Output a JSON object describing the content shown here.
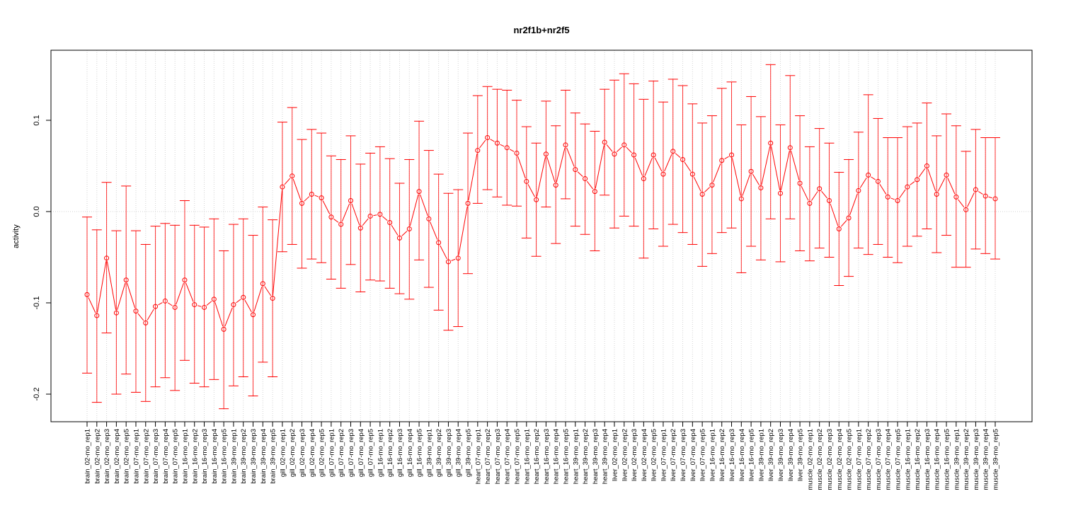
{
  "chart_data": {
    "type": "line",
    "title": "nr2f1b+nr2f5",
    "xlabel": "",
    "ylabel": "activity",
    "ylim": [
      -0.23,
      0.175
    ],
    "yticks": [
      -0.2,
      -0.1,
      0.0,
      0.1
    ],
    "ytick_labels": [
      "-0.2",
      "-0.1",
      "0.0",
      "0.1"
    ],
    "grid": "dotted vertical at each sample, horizontal at 0",
    "color": "#ff0000",
    "categories": [
      "brain_02-mo_rep1",
      "brain_02-mo_rep2",
      "brain_02-mo_rep3",
      "brain_02-mo_rep4",
      "brain_02-mo_rep5",
      "brain_07-mo_rep1",
      "brain_07-mo_rep2",
      "brain_07-mo_rep3",
      "brain_07-mo_rep4",
      "brain_07-mo_rep5",
      "brain_16-mo_rep1",
      "brain_16-mo_rep2",
      "brain_16-mo_rep3",
      "brain_16-mo_rep4",
      "brain_16-mo_rep5",
      "brain_39-mo_rep1",
      "brain_39-mo_rep2",
      "brain_39-mo_rep3",
      "brain_39-mo_rep4",
      "brain_39-mo_rep5",
      "gill_02-mo_rep1",
      "gill_02-mo_rep2",
      "gill_02-mo_rep3",
      "gill_02-mo_rep4",
      "gill_02-mo_rep5",
      "gill_07-mo_rep1",
      "gill_07-mo_rep2",
      "gill_07-mo_rep3",
      "gill_07-mo_rep4",
      "gill_07-mo_rep5",
      "gill_16-mo_rep1",
      "gill_16-mo_rep2",
      "gill_16-mo_rep3",
      "gill_16-mo_rep4",
      "gill_16-mo_rep5",
      "gill_39-mo_rep1",
      "gill_39-mo_rep2",
      "gill_39-mo_rep3",
      "gill_39-mo_rep4",
      "gill_39-mo_rep5",
      "heart_07-mo_rep1",
      "heart_07-mo_rep2",
      "heart_07-mo_rep3",
      "heart_07-mo_rep4",
      "heart_07-mo_rep5",
      "heart_16-mo_rep1",
      "heart_16-mo_rep2",
      "heart_16-mo_rep3",
      "heart_16-mo_rep4",
      "heart_16-mo_rep5",
      "heart_39-mo_rep1",
      "heart_39-mo_rep2",
      "heart_39-mo_rep3",
      "heart_39-mo_rep4",
      "liver_02-mo_rep1",
      "liver_02-mo_rep2",
      "liver_02-mo_rep3",
      "liver_02-mo_rep4",
      "liver_02-mo_rep5",
      "liver_07-mo_rep1",
      "liver_07-mo_rep2",
      "liver_07-mo_rep3",
      "liver_07-mo_rep4",
      "liver_07-mo_rep5",
      "liver_16-mo_rep1",
      "liver_16-mo_rep2",
      "liver_16-mo_rep3",
      "liver_16-mo_rep4",
      "liver_16-mo_rep5",
      "liver_39-mo_rep1",
      "liver_39-mo_rep2",
      "liver_39-mo_rep3",
      "liver_39-mo_rep4",
      "liver_39-mo_rep5",
      "muscle_02-mo_rep1",
      "muscle_02-mo_rep2",
      "muscle_02-mo_rep3",
      "muscle_02-mo_rep4",
      "muscle_02-mo_rep5",
      "muscle_07-mo_rep1",
      "muscle_07-mo_rep2",
      "muscle_07-mo_rep3",
      "muscle_07-mo_rep4",
      "muscle_07-mo_rep5",
      "muscle_16-mo_rep1",
      "muscle_16-mo_rep2",
      "muscle_16-mo_rep3",
      "muscle_16-mo_rep4",
      "muscle_16-mo_rep5",
      "muscle_39-mo_rep1",
      "muscle_39-mo_rep2",
      "muscle_39-mo_rep3",
      "muscle_39-mo_rep4",
      "muscle_39-mo_rep5"
    ],
    "values": [
      -0.091,
      -0.114,
      -0.051,
      -0.111,
      -0.075,
      -0.109,
      -0.122,
      -0.104,
      -0.098,
      -0.105,
      -0.075,
      -0.102,
      -0.105,
      -0.096,
      -0.129,
      -0.102,
      -0.094,
      -0.113,
      -0.079,
      -0.095,
      0.027,
      0.039,
      0.009,
      0.019,
      0.015,
      -0.006,
      -0.014,
      0.012,
      -0.018,
      -0.005,
      -0.003,
      -0.012,
      -0.029,
      -0.019,
      0.022,
      -0.008,
      -0.034,
      -0.055,
      -0.051,
      0.009,
      0.067,
      0.081,
      0.075,
      0.07,
      0.064,
      0.033,
      0.013,
      0.063,
      0.029,
      0.073,
      0.046,
      0.036,
      0.022,
      0.076,
      0.063,
      0.073,
      0.062,
      0.036,
      0.062,
      0.041,
      0.066,
      0.057,
      0.041,
      0.019,
      0.029,
      0.056,
      0.062,
      0.014,
      0.044,
      0.026,
      0.075,
      0.02,
      0.07,
      0.031,
      0.009,
      0.025,
      0.012,
      -0.019,
      -0.007,
      0.023,
      0.04,
      0.033,
      0.016,
      0.012,
      0.027,
      0.035,
      0.05,
      0.019,
      0.04,
      0.016,
      0.002,
      0.024,
      0.017,
      0.014
    ],
    "upper": [
      -0.006,
      -0.02,
      0.032,
      -0.021,
      0.028,
      -0.021,
      -0.036,
      -0.016,
      -0.013,
      -0.015,
      0.012,
      -0.015,
      -0.017,
      -0.008,
      -0.043,
      -0.014,
      -0.008,
      -0.026,
      0.005,
      -0.009,
      0.098,
      0.114,
      0.079,
      0.09,
      0.086,
      0.061,
      0.057,
      0.083,
      0.052,
      0.064,
      0.071,
      0.058,
      0.031,
      0.057,
      0.099,
      0.067,
      0.041,
      0.02,
      0.024,
      0.086,
      0.127,
      0.137,
      0.134,
      0.133,
      0.122,
      0.093,
      0.075,
      0.121,
      0.094,
      0.133,
      0.108,
      0.096,
      0.088,
      0.134,
      0.144,
      0.151,
      0.14,
      0.123,
      0.143,
      0.12,
      0.145,
      0.138,
      0.118,
      0.097,
      0.105,
      0.135,
      0.142,
      0.095,
      0.126,
      0.104,
      0.161,
      0.095,
      0.149,
      0.105,
      0.071,
      0.091,
      0.075,
      0.043,
      0.057,
      0.087,
      0.128,
      0.102,
      0.081,
      0.081,
      0.093,
      0.097,
      0.119,
      0.083,
      0.107,
      0.094,
      0.066,
      0.09,
      0.081,
      0.081
    ],
    "lower": [
      -0.177,
      -0.209,
      -0.133,
      -0.2,
      -0.178,
      -0.198,
      -0.208,
      -0.192,
      -0.182,
      -0.196,
      -0.163,
      -0.188,
      -0.192,
      -0.184,
      -0.216,
      -0.191,
      -0.181,
      -0.202,
      -0.165,
      -0.181,
      -0.044,
      -0.036,
      -0.062,
      -0.052,
      -0.056,
      -0.074,
      -0.084,
      -0.058,
      -0.088,
      -0.075,
      -0.076,
      -0.084,
      -0.09,
      -0.096,
      -0.053,
      -0.083,
      -0.108,
      -0.13,
      -0.126,
      -0.068,
      0.009,
      0.024,
      0.016,
      0.007,
      0.006,
      -0.029,
      -0.049,
      0.005,
      -0.035,
      0.014,
      -0.016,
      -0.025,
      -0.043,
      0.018,
      -0.018,
      -0.005,
      -0.016,
      -0.051,
      -0.019,
      -0.038,
      -0.014,
      -0.023,
      -0.036,
      -0.06,
      -0.046,
      -0.023,
      -0.018,
      -0.067,
      -0.038,
      -0.053,
      -0.008,
      -0.055,
      -0.008,
      -0.043,
      -0.054,
      -0.04,
      -0.05,
      -0.081,
      -0.071,
      -0.04,
      -0.047,
      -0.036,
      -0.05,
      -0.056,
      -0.038,
      -0.027,
      -0.019,
      -0.045,
      -0.026,
      -0.061,
      -0.061,
      -0.041,
      -0.046,
      -0.052
    ]
  }
}
